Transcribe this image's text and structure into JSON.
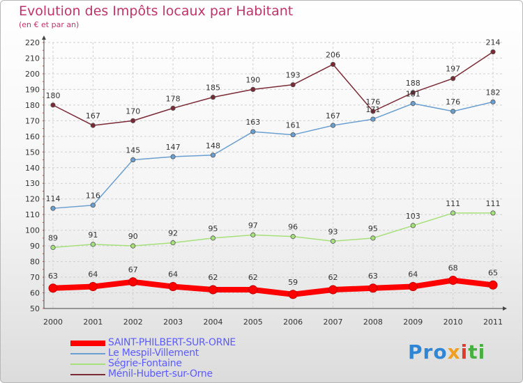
{
  "title": "Evolution des Impôts locaux par Habitant",
  "subtitle": "(en € et par an)",
  "logo": {
    "text": [
      "Pro",
      "x",
      "i",
      "ti"
    ]
  },
  "chart_data": {
    "type": "line",
    "title": "Evolution des Impôts locaux par Habitant",
    "subtitle": "(en € et par an)",
    "xlabel": "",
    "ylabel": "",
    "x": [
      "2000",
      "2001",
      "2002",
      "2003",
      "2004",
      "2005",
      "2006",
      "2007",
      "2008",
      "2009",
      "2010",
      "2011"
    ],
    "ylim": [
      50,
      220
    ],
    "yticks": [
      "50",
      "60",
      "70",
      "80",
      "90",
      "100",
      "110",
      "120",
      "130",
      "140",
      "150",
      "160",
      "170",
      "180",
      "190",
      "200",
      "210",
      "220"
    ],
    "grid": true,
    "legend": "bottom-left",
    "series": [
      {
        "name": "SAINT-PHILBERT-SUR-ORNE",
        "color": "#ff0000",
        "values": [
          63,
          64,
          67,
          64,
          62,
          62,
          59,
          62,
          63,
          64,
          68,
          65
        ],
        "labels": [
          "63",
          "64",
          "67",
          "64",
          "62",
          "62",
          "59",
          "62",
          "63",
          "64",
          "68",
          "65"
        ]
      },
      {
        "name": "Le Mespil-Villement",
        "color": "#6a9fd0",
        "values": [
          114,
          116,
          145,
          147,
          148,
          163,
          161,
          167,
          171,
          181,
          176,
          182
        ],
        "labels": [
          "114",
          "116",
          "145",
          "147",
          "148",
          "163",
          "161",
          "167",
          "171",
          "181",
          "176",
          "182"
        ]
      },
      {
        "name": "Ségrie-Fontaine",
        "color": "#a6e07a",
        "values": [
          89,
          91,
          90,
          92,
          95,
          97,
          96,
          93,
          95,
          103,
          111,
          111
        ],
        "labels": [
          "89",
          "91",
          "90",
          "92",
          "95",
          "97",
          "96",
          "93",
          "95",
          "103",
          "111",
          "111"
        ]
      },
      {
        "name": "Ménil-Hubert-sur-Orne",
        "color": "#7a2a35",
        "values": [
          180,
          167,
          170,
          178,
          185,
          190,
          193,
          206,
          176,
          188,
          197,
          214
        ],
        "labels": [
          "180",
          "167",
          "170",
          "178",
          "185",
          "190",
          "193",
          "206",
          "176",
          "188",
          "197",
          "214"
        ]
      }
    ]
  }
}
